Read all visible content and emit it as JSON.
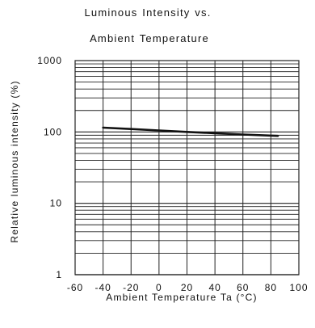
{
  "chart_data": {
    "type": "line",
    "title_lines": [
      "Luminous Intensity vs.",
      "Ambient Temperature"
    ],
    "xlabel": "Ambient Temperature Ta (°C)",
    "ylabel": "Relative luminous intensity (%)",
    "xlim": [
      -60,
      100
    ],
    "ylim": [
      1,
      1000
    ],
    "y_scale": "log",
    "x_ticks": [
      -60,
      -40,
      -20,
      0,
      20,
      40,
      60,
      80,
      100
    ],
    "x_tick_labels": [
      "-60",
      "-40",
      "-20",
      "0",
      "20",
      "40",
      "60",
      "80",
      "100"
    ],
    "y_ticks": [
      1,
      10,
      100,
      1000
    ],
    "y_tick_labels": [
      "1",
      "10",
      "100",
      "1000"
    ],
    "grid": true,
    "series": [
      {
        "x": [
          -40,
          -20,
          0,
          20,
          40,
          60,
          85
        ],
        "y": [
          115,
          110,
          105,
          100,
          96,
          92,
          88
        ]
      }
    ],
    "colors": {
      "line": "#111111",
      "grid": "#222222"
    }
  }
}
